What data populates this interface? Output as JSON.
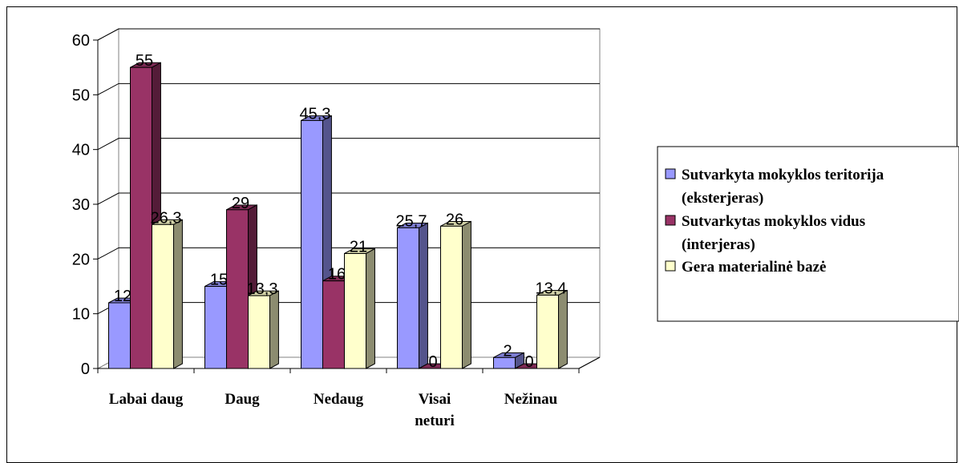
{
  "chart_data": {
    "type": "bar",
    "categories": [
      [
        "Labai daug"
      ],
      [
        "Daug"
      ],
      [
        "Nedaug"
      ],
      [
        "Visai",
        "neturi"
      ],
      [
        "Nežinau"
      ]
    ],
    "series": [
      {
        "name": [
          "Sutvarkyta mokyklos teritorija",
          "(eksterjeras)"
        ],
        "values": [
          12,
          15,
          45.3,
          25.7,
          2
        ],
        "labels": [
          "12",
          "15",
          "45,3",
          "25,7",
          "2"
        ],
        "color": "#9999ff"
      },
      {
        "name": [
          "Sutvarkytas mokyklos vidus",
          "(interjeras)"
        ],
        "values": [
          55,
          29,
          16,
          0,
          0
        ],
        "labels": [
          "55",
          "29",
          "16",
          "0",
          "0"
        ],
        "color": "#993366"
      },
      {
        "name": [
          "Gera materialinė bazė"
        ],
        "values": [
          26.3,
          13.3,
          21,
          26,
          13.4
        ],
        "labels": [
          "26,3",
          "13,3",
          "21",
          "26",
          "13,4"
        ],
        "color": "#ffffcc"
      }
    ],
    "ylim": [
      0,
      60
    ],
    "yticks": [
      0,
      10,
      20,
      30,
      40,
      50,
      60
    ],
    "grid": true,
    "legend_position": "right",
    "three_d": true
  }
}
